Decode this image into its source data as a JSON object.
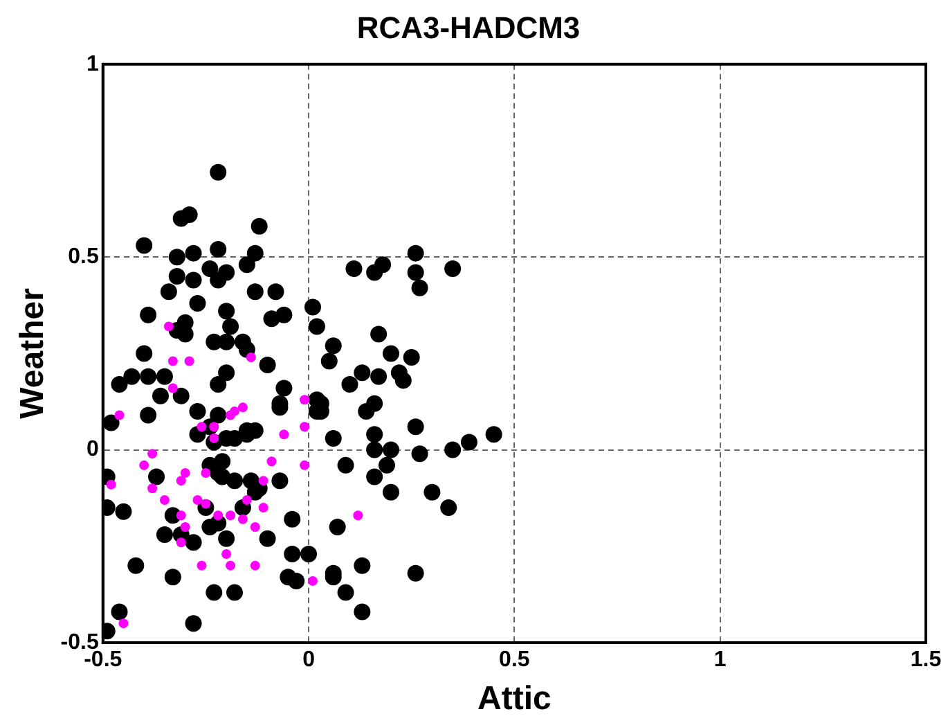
{
  "chart_data": {
    "type": "scatter",
    "title": "RCA3-HADCM3",
    "xlabel": "Attic",
    "ylabel": "Weather",
    "xlim": [
      -0.5,
      1.5
    ],
    "xticks": [
      -0.5,
      0,
      0.5,
      1,
      1.5
    ],
    "ylim": [
      -0.5,
      1
    ],
    "yticks": [
      -0.5,
      0,
      0.5,
      1
    ],
    "grid": true,
    "marker": "circle",
    "legend": false,
    "series": [
      {
        "color": "#000000",
        "x": [
          -0.22,
          -0.31,
          -0.29,
          -0.12,
          -0.4,
          -0.32,
          -0.28,
          -0.22,
          -0.13,
          -0.24,
          -0.32,
          -0.28,
          -0.22,
          -0.2,
          -0.15,
          -0.34,
          -0.13,
          -0.08,
          -0.27,
          -0.39,
          -0.2,
          -0.09,
          -0.06,
          0.01,
          0.02,
          -0.3,
          -0.32,
          -0.3,
          -0.19,
          -0.23,
          -0.2,
          -0.16,
          -0.15,
          -0.4,
          -0.1,
          -0.2,
          -0.46,
          -0.43,
          -0.39,
          -0.35,
          -0.36,
          -0.31,
          -0.22,
          -0.06,
          -0.07,
          0.02,
          -0.48,
          -0.39,
          -0.27,
          -0.22,
          -0.24,
          -0.27,
          -0.23,
          -0.2,
          -0.18,
          -0.15,
          -0.15,
          -0.13,
          -0.07,
          0.02,
          -0.49,
          -0.37,
          -0.24,
          -0.21,
          -0.22,
          -0.21,
          -0.18,
          -0.14,
          -0.12,
          -0.13,
          -0.07,
          -0.49,
          -0.45,
          -0.33,
          -0.25,
          -0.16,
          -0.04,
          -0.22,
          -0.24,
          -0.35,
          -0.31,
          -0.28,
          -0.2,
          -0.1,
          -0.04,
          0.0,
          -0.42,
          -0.33,
          -0.05,
          -0.03,
          -0.23,
          -0.18,
          -0.46,
          -0.28,
          -0.49,
          0.26,
          0.18,
          0.11,
          0.16,
          0.26,
          0.35,
          0.27,
          0.17,
          0.06,
          0.2,
          0.25,
          0.05,
          0.13,
          0.17,
          0.22,
          0.23,
          0.1,
          0.03,
          0.03,
          0.16,
          0.14,
          0.26,
          0.06,
          0.16,
          0.45,
          0.39,
          0.35,
          0.16,
          0.2,
          0.27,
          0.09,
          0.19,
          0.16,
          0.2,
          0.3,
          0.34,
          0.07,
          0.13,
          0.06,
          0.06,
          0.26,
          0.09,
          0.13
        ],
        "values": [
          0.72,
          0.6,
          0.61,
          0.58,
          0.53,
          0.5,
          0.51,
          0.52,
          0.51,
          0.47,
          0.45,
          0.44,
          0.44,
          0.46,
          0.48,
          0.41,
          0.41,
          0.41,
          0.38,
          0.35,
          0.36,
          0.34,
          0.35,
          0.37,
          0.32,
          0.33,
          0.31,
          0.3,
          0.32,
          0.28,
          0.28,
          0.28,
          0.26,
          0.25,
          0.22,
          0.2,
          0.17,
          0.19,
          0.19,
          0.19,
          0.14,
          0.14,
          0.17,
          0.16,
          0.12,
          0.13,
          0.07,
          0.09,
          0.1,
          0.09,
          0.06,
          0.04,
          0.02,
          0.03,
          0.03,
          0.05,
          0.04,
          0.05,
          0.11,
          0.1,
          -0.07,
          -0.07,
          -0.04,
          -0.03,
          -0.06,
          -0.07,
          -0.08,
          -0.08,
          -0.1,
          -0.11,
          -0.08,
          -0.15,
          -0.16,
          -0.17,
          -0.15,
          -0.15,
          -0.18,
          -0.19,
          -0.2,
          -0.22,
          -0.22,
          -0.24,
          -0.23,
          -0.23,
          -0.27,
          -0.27,
          -0.3,
          -0.33,
          -0.33,
          -0.34,
          -0.37,
          -0.37,
          -0.42,
          -0.45,
          -0.47,
          0.51,
          0.48,
          0.47,
          0.46,
          0.46,
          0.47,
          0.42,
          0.3,
          0.27,
          0.25,
          0.24,
          0.23,
          0.2,
          0.19,
          0.2,
          0.18,
          0.17,
          0.12,
          0.1,
          0.12,
          0.1,
          0.06,
          0.03,
          0.04,
          0.04,
          0.02,
          0.0,
          0.0,
          0.0,
          -0.01,
          -0.04,
          -0.04,
          -0.07,
          -0.11,
          -0.11,
          -0.15,
          -0.2,
          -0.3,
          -0.32,
          -0.33,
          -0.32,
          -0.37,
          -0.42
        ]
      },
      {
        "color": "#ff00ff",
        "x": [
          -0.34,
          -0.33,
          -0.29,
          -0.14,
          -0.33,
          -0.01,
          -0.16,
          -0.46,
          -0.26,
          -0.23,
          -0.23,
          -0.19,
          -0.18,
          -0.06,
          -0.01,
          -0.38,
          -0.4,
          -0.48,
          -0.31,
          -0.3,
          -0.25,
          -0.09,
          -0.01,
          -0.11,
          -0.38,
          -0.35,
          -0.27,
          -0.25,
          -0.15,
          -0.31,
          -0.22,
          -0.19,
          -0.16,
          -0.11,
          -0.13,
          -0.3,
          -0.31,
          -0.2,
          -0.26,
          -0.19,
          -0.13,
          0.01,
          -0.45,
          0.12
        ],
        "values": [
          0.32,
          0.23,
          0.23,
          0.24,
          0.16,
          0.13,
          0.11,
          0.09,
          0.06,
          0.06,
          0.03,
          0.09,
          0.1,
          0.04,
          0.06,
          -0.01,
          -0.04,
          -0.09,
          -0.08,
          -0.06,
          -0.06,
          -0.03,
          -0.04,
          -0.08,
          -0.1,
          -0.13,
          -0.13,
          -0.14,
          -0.13,
          -0.17,
          -0.17,
          -0.17,
          -0.18,
          -0.15,
          -0.2,
          -0.2,
          -0.24,
          -0.27,
          -0.3,
          -0.3,
          -0.3,
          -0.34,
          -0.45,
          -0.17
        ]
      }
    ]
  }
}
